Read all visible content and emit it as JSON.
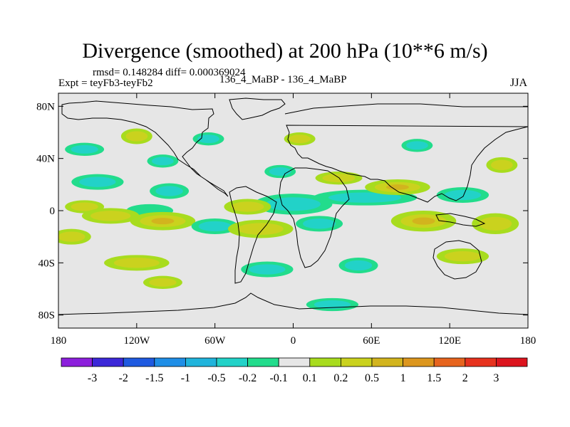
{
  "header": {
    "title": "Divergence (smoothed) at 200 hPa (10**6 m/s)",
    "rmsd_line": "rmsd= 0.148284 diff= 0.000369024",
    "expt_line": "Expt = teyFb3-teyFb2",
    "case_line": "136_4_MaBP - 136_4_MaBP",
    "season": "JJA"
  },
  "colors": {
    "background_field": "#e6e6e6",
    "frame": "#000000",
    "land_outline": "#000000"
  },
  "chart_data": {
    "type": "heatmap",
    "title": "Divergence (smoothed) at 200 hPa (10**6 m/s)",
    "units": "10**6 m/s",
    "xlabel": "",
    "ylabel": "",
    "xlim": [
      -180,
      180
    ],
    "ylim": [
      -90,
      90
    ],
    "x_ticks": [
      {
        "value": -180,
        "label": "180"
      },
      {
        "value": -120,
        "label": "120W"
      },
      {
        "value": -60,
        "label": "60W"
      },
      {
        "value": 0,
        "label": "0"
      },
      {
        "value": 60,
        "label": "60E"
      },
      {
        "value": 120,
        "label": "120E"
      },
      {
        "value": 180,
        "label": "180"
      }
    ],
    "y_ticks": [
      {
        "value": 80,
        "label": "80N"
      },
      {
        "value": 40,
        "label": "40N"
      },
      {
        "value": 0,
        "label": "0"
      },
      {
        "value": -40,
        "label": "40S"
      },
      {
        "value": -80,
        "label": "80S"
      }
    ],
    "levels": [
      "-3",
      "-2",
      "-1.5",
      "-1",
      "-0.5",
      "-0.2",
      "-0.1",
      "0.1",
      "0.2",
      "0.5",
      "1",
      "1.5",
      "2",
      "3"
    ],
    "colorbar_colors": [
      "#8c1fdc",
      "#3c28d8",
      "#1f5ae0",
      "#1f8ee6",
      "#20b4dc",
      "#22d2c8",
      "#22dc8c",
      "#e6e6e6",
      "#a8dc1e",
      "#cad21e",
      "#d2b41e",
      "#dc961e",
      "#e6641e",
      "#e6321e",
      "#dc141e"
    ],
    "features": [
      {
        "lon": 55,
        "lat": 10,
        "rlon": 40,
        "rlat": 6,
        "value": -0.3
      },
      {
        "lon": 0,
        "lat": 5,
        "rlon": 30,
        "rlat": 8,
        "value": -0.25
      },
      {
        "lon": -35,
        "lat": 3,
        "rlon": 18,
        "rlat": 6,
        "value": 0.2
      },
      {
        "lon": -95,
        "lat": 15,
        "rlon": 15,
        "rlat": 6,
        "value": -0.3
      },
      {
        "lon": -150,
        "lat": 22,
        "rlon": 20,
        "rlat": 6,
        "value": -0.2
      },
      {
        "lon": -110,
        "lat": 0,
        "rlon": 18,
        "rlat": 5,
        "value": -0.15
      },
      {
        "lon": -160,
        "lat": 3,
        "rlon": 15,
        "rlat": 5,
        "value": 0.2
      },
      {
        "lon": -140,
        "lat": -4,
        "rlon": 22,
        "rlat": 6,
        "value": 0.3
      },
      {
        "lon": -100,
        "lat": -8,
        "rlon": 25,
        "rlat": 7,
        "value": 0.35
      },
      {
        "lon": -60,
        "lat": -12,
        "rlon": 18,
        "rlat": 6,
        "value": -0.2
      },
      {
        "lon": -25,
        "lat": -14,
        "rlon": 25,
        "rlat": 7,
        "value": 0.3
      },
      {
        "lon": 20,
        "lat": -10,
        "rlon": 18,
        "rlat": 6,
        "value": -0.2
      },
      {
        "lon": 100,
        "lat": -8,
        "rlon": 25,
        "rlat": 8,
        "value": 0.35
      },
      {
        "lon": 155,
        "lat": -10,
        "rlon": 18,
        "rlat": 8,
        "value": 0.3
      },
      {
        "lon": 130,
        "lat": 12,
        "rlon": 20,
        "rlat": 6,
        "value": -0.2
      },
      {
        "lon": 80,
        "lat": 18,
        "rlon": 25,
        "rlat": 6,
        "value": 0.4
      },
      {
        "lon": 35,
        "lat": 25,
        "rlon": 18,
        "rlat": 5,
        "value": 0.2
      },
      {
        "lon": 160,
        "lat": 35,
        "rlon": 12,
        "rlat": 6,
        "value": 0.2
      },
      {
        "lon": -100,
        "lat": 38,
        "rlon": 12,
        "rlat": 5,
        "value": -0.2
      },
      {
        "lon": -65,
        "lat": 55,
        "rlon": 12,
        "rlat": 5,
        "value": -0.2
      },
      {
        "lon": -120,
        "lat": 57,
        "rlon": 12,
        "rlat": 6,
        "value": 0.2
      },
      {
        "lon": -160,
        "lat": 47,
        "rlon": 15,
        "rlat": 5,
        "value": -0.2
      },
      {
        "lon": -170,
        "lat": -20,
        "rlon": 15,
        "rlat": 6,
        "value": 0.2
      },
      {
        "lon": -120,
        "lat": -40,
        "rlon": 25,
        "rlat": 6,
        "value": 0.2
      },
      {
        "lon": -20,
        "lat": -45,
        "rlon": 20,
        "rlat": 6,
        "value": -0.2
      },
      {
        "lon": 50,
        "lat": -42,
        "rlon": 15,
        "rlat": 6,
        "value": -0.2
      },
      {
        "lon": 130,
        "lat": -35,
        "rlon": 20,
        "rlat": 6,
        "value": 0.2
      },
      {
        "lon": 30,
        "lat": -72,
        "rlon": 20,
        "rlat": 5,
        "value": -0.2
      },
      {
        "lon": -100,
        "lat": -55,
        "rlon": 15,
        "rlat": 5,
        "value": 0.2
      },
      {
        "lon": 95,
        "lat": 50,
        "rlon": 12,
        "rlat": 5,
        "value": -0.2
      },
      {
        "lon": -10,
        "lat": 30,
        "rlon": 12,
        "rlat": 5,
        "value": -0.2
      },
      {
        "lon": 5,
        "lat": 55,
        "rlon": 12,
        "rlat": 5,
        "value": 0.2
      }
    ]
  }
}
